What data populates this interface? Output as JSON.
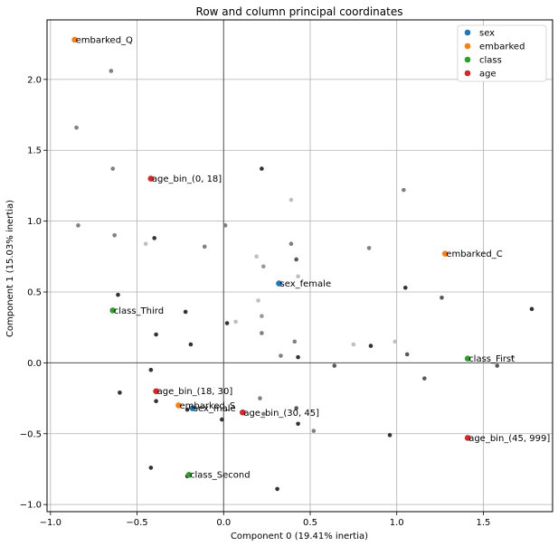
{
  "chart_data": {
    "type": "scatter",
    "title": "Row and column principal coordinates",
    "xlabel": "Component 0 (19.41% inertia)",
    "ylabel": "Component 1 (15.03% inertia)",
    "xlim": [
      -1.02,
      1.9
    ],
    "ylim": [
      -1.05,
      2.42
    ],
    "xticks": [
      -1.0,
      -0.5,
      0.0,
      0.5,
      1.0,
      1.5
    ],
    "yticks": [
      -1.0,
      -0.5,
      0.0,
      0.5,
      1.0,
      1.5,
      2.0
    ],
    "xtick_labels": [
      "−1.0",
      "−0.5",
      "0.0",
      "0.5",
      "1.0",
      "1.5"
    ],
    "ytick_labels": [
      "−1.0",
      "−0.5",
      "0.0",
      "0.5",
      "1.0",
      "1.5",
      "2.0"
    ],
    "grid": true,
    "legend": {
      "position": "top-right",
      "entries": [
        "sex",
        "embarked",
        "class",
        "age"
      ]
    },
    "colors": {
      "sex": "#1f77b4",
      "embarked": "#ff7f0e",
      "class": "#2ca02c",
      "age": "#d62728"
    },
    "series": [
      {
        "name": "sex",
        "color": "#1f77b4",
        "points": [
          {
            "x": -0.18,
            "y": -0.32,
            "label": "sex_male"
          },
          {
            "x": 0.32,
            "y": 0.56,
            "label": "sex_female"
          }
        ]
      },
      {
        "name": "embarked",
        "color": "#ff7f0e",
        "points": [
          {
            "x": -0.86,
            "y": 2.28,
            "label": "embarked_Q"
          },
          {
            "x": 1.28,
            "y": 0.77,
            "label": "embarked_C"
          },
          {
            "x": -0.26,
            "y": -0.3,
            "label": "embarked_S"
          }
        ]
      },
      {
        "name": "class",
        "color": "#2ca02c",
        "points": [
          {
            "x": -0.64,
            "y": 0.37,
            "label": "class_Third"
          },
          {
            "x": 1.41,
            "y": 0.03,
            "label": "class_First"
          },
          {
            "x": -0.2,
            "y": -0.79,
            "label": "class_Second"
          }
        ]
      },
      {
        "name": "age",
        "color": "#d62728",
        "points": [
          {
            "x": -0.42,
            "y": 1.3,
            "label": "age_bin_(0, 18]"
          },
          {
            "x": -0.39,
            "y": -0.2,
            "label": "age_bin_(18, 30]"
          },
          {
            "x": 0.11,
            "y": -0.35,
            "label": "age_bin_(30, 45]"
          },
          {
            "x": 1.41,
            "y": -0.53,
            "label": "age_bin_(45, 999]"
          }
        ]
      }
    ],
    "row_points": [
      {
        "x": -0.65,
        "y": 2.06,
        "shade": 0.5
      },
      {
        "x": -0.85,
        "y": 1.66,
        "shade": 0.5
      },
      {
        "x": -0.64,
        "y": 1.37,
        "shade": 0.5
      },
      {
        "x": 0.22,
        "y": 1.37,
        "shade": 0.2
      },
      {
        "x": 1.04,
        "y": 1.22,
        "shade": 0.5
      },
      {
        "x": 0.39,
        "y": 1.15,
        "shade": 0.75
      },
      {
        "x": -0.84,
        "y": 0.97,
        "shade": 0.5
      },
      {
        "x": 0.01,
        "y": 0.97,
        "shade": 0.5
      },
      {
        "x": -0.63,
        "y": 0.9,
        "shade": 0.5
      },
      {
        "x": -0.4,
        "y": 0.88,
        "shade": 0.2
      },
      {
        "x": -0.45,
        "y": 0.84,
        "shade": 0.75
      },
      {
        "x": 0.39,
        "y": 0.84,
        "shade": 0.5
      },
      {
        "x": -0.11,
        "y": 0.82,
        "shade": 0.5
      },
      {
        "x": 0.84,
        "y": 0.81,
        "shade": 0.5
      },
      {
        "x": 0.19,
        "y": 0.75,
        "shade": 0.75
      },
      {
        "x": 0.42,
        "y": 0.73,
        "shade": 0.35
      },
      {
        "x": 0.23,
        "y": 0.68,
        "shade": 0.6
      },
      {
        "x": 0.43,
        "y": 0.61,
        "shade": 0.75
      },
      {
        "x": 1.05,
        "y": 0.53,
        "shade": 0.2
      },
      {
        "x": -0.61,
        "y": 0.48,
        "shade": 0.2
      },
      {
        "x": 1.26,
        "y": 0.46,
        "shade": 0.35
      },
      {
        "x": 0.2,
        "y": 0.44,
        "shade": 0.75
      },
      {
        "x": 1.78,
        "y": 0.38,
        "shade": 0.2
      },
      {
        "x": -0.22,
        "y": 0.36,
        "shade": 0.2
      },
      {
        "x": 0.22,
        "y": 0.33,
        "shade": 0.6
      },
      {
        "x": 0.07,
        "y": 0.29,
        "shade": 0.75
      },
      {
        "x": 0.02,
        "y": 0.28,
        "shade": 0.2
      },
      {
        "x": 0.22,
        "y": 0.21,
        "shade": 0.5
      },
      {
        "x": -0.39,
        "y": 0.2,
        "shade": 0.2
      },
      {
        "x": 0.41,
        "y": 0.15,
        "shade": 0.5
      },
      {
        "x": 0.99,
        "y": 0.15,
        "shade": 0.75
      },
      {
        "x": -0.19,
        "y": 0.13,
        "shade": 0.2
      },
      {
        "x": 0.75,
        "y": 0.13,
        "shade": 0.75
      },
      {
        "x": 0.85,
        "y": 0.12,
        "shade": 0.2
      },
      {
        "x": 1.06,
        "y": 0.06,
        "shade": 0.35
      },
      {
        "x": 0.33,
        "y": 0.05,
        "shade": 0.5
      },
      {
        "x": 0.43,
        "y": 0.04,
        "shade": 0.2
      },
      {
        "x": 1.67,
        "y": 0.04,
        "shade": 0.75
      },
      {
        "x": 0.64,
        "y": -0.02,
        "shade": 0.35
      },
      {
        "x": 1.58,
        "y": -0.02,
        "shade": 0.35
      },
      {
        "x": -0.42,
        "y": -0.05,
        "shade": 0.2
      },
      {
        "x": 1.16,
        "y": -0.11,
        "shade": 0.35
      },
      {
        "x": -0.6,
        "y": -0.21,
        "shade": 0.2
      },
      {
        "x": 0.21,
        "y": -0.25,
        "shade": 0.5
      },
      {
        "x": -0.39,
        "y": -0.27,
        "shade": 0.2
      },
      {
        "x": -0.21,
        "y": -0.33,
        "shade": 0.2
      },
      {
        "x": 0.42,
        "y": -0.32,
        "shade": 0.35
      },
      {
        "x": 0.23,
        "y": -0.36,
        "shade": 0.5
      },
      {
        "x": -0.01,
        "y": -0.4,
        "shade": 0.2
      },
      {
        "x": 0.43,
        "y": -0.43,
        "shade": 0.2
      },
      {
        "x": 0.52,
        "y": -0.48,
        "shade": 0.5
      },
      {
        "x": 0.96,
        "y": -0.51,
        "shade": 0.2
      },
      {
        "x": -0.42,
        "y": -0.74,
        "shade": 0.2
      },
      {
        "x": -0.21,
        "y": -0.8,
        "shade": 0.2
      },
      {
        "x": 0.31,
        "y": -0.89,
        "shade": 0.2
      }
    ]
  }
}
